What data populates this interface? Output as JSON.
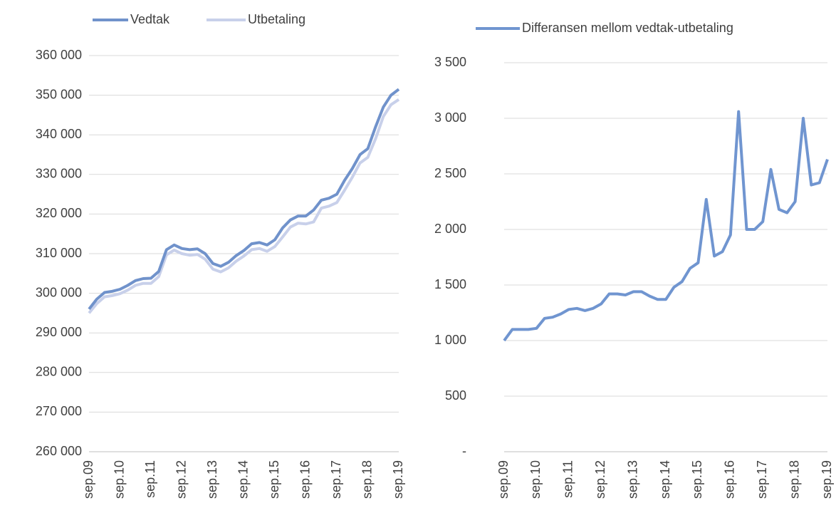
{
  "chart_data": [
    {
      "type": "line",
      "categories": [
        "sep.09",
        null,
        null,
        null,
        "sep.10",
        null,
        null,
        null,
        "sep.11",
        null,
        null,
        null,
        "sep.12",
        null,
        null,
        null,
        "sep.13",
        null,
        null,
        null,
        "sep.14",
        null,
        null,
        null,
        "sep.15",
        null,
        null,
        null,
        "sep.16",
        null,
        null,
        null,
        "sep.17",
        null,
        null,
        null,
        "sep.18",
        null,
        null,
        null,
        "sep.19"
      ],
      "series": [
        {
          "name": "Vedtak",
          "color": "#7092cb",
          "values": [
            296000,
            298500,
            300200,
            300500,
            301000,
            302000,
            303200,
            303700,
            303800,
            305500,
            311000,
            312200,
            311300,
            311000,
            311200,
            310000,
            307500,
            306800,
            307800,
            309500,
            310800,
            312500,
            312800,
            312200,
            313500,
            316500,
            318500,
            319500,
            319500,
            321000,
            323500,
            324000,
            325000,
            328500,
            331500,
            335000,
            336500,
            342000,
            347000,
            350000,
            351500
          ]
        },
        {
          "name": "Utbetaling",
          "color": "#c8d0ea",
          "values": [
            295000,
            297400,
            299100,
            299400,
            299900,
            300800,
            302000,
            302500,
            302500,
            304200,
            309700,
            310900,
            310000,
            309600,
            309800,
            308600,
            306100,
            305400,
            306400,
            308100,
            309400,
            311000,
            311300,
            310600,
            311800,
            314200,
            316700,
            317700,
            317500,
            318000,
            321500,
            322000,
            322900,
            326000,
            329300,
            332900,
            334300,
            339000,
            344600,
            347600,
            348900
          ]
        }
      ],
      "ylim": [
        260000,
        360000
      ],
      "yticks": [
        {
          "value": 260000,
          "label": "260 000"
        },
        {
          "value": 270000,
          "label": "270 000"
        },
        {
          "value": 280000,
          "label": "280 000"
        },
        {
          "value": 290000,
          "label": "290 000"
        },
        {
          "value": 300000,
          "label": "300 000"
        },
        {
          "value": 310000,
          "label": "310 000"
        },
        {
          "value": 320000,
          "label": "320 000"
        },
        {
          "value": 330000,
          "label": "330 000"
        },
        {
          "value": 340000,
          "label": "340 000"
        },
        {
          "value": 350000,
          "label": "350 000"
        },
        {
          "value": 360000,
          "label": "360 000"
        }
      ],
      "grid": true
    },
    {
      "type": "line",
      "categories": [
        "sep.09",
        null,
        null,
        null,
        "sep.10",
        null,
        null,
        null,
        "sep.11",
        null,
        null,
        null,
        "sep.12",
        null,
        null,
        null,
        "sep.13",
        null,
        null,
        null,
        "sep.14",
        null,
        null,
        null,
        "sep.15",
        null,
        null,
        null,
        "sep.16",
        null,
        null,
        null,
        "sep.17",
        null,
        null,
        null,
        "sep.18",
        null,
        null,
        null,
        "sep.19"
      ],
      "series": [
        {
          "name": "Differansen mellom vedtak-utbetaling",
          "color": "#7095d0",
          "values": [
            1000,
            1100,
            1100,
            1100,
            1110,
            1200,
            1210,
            1240,
            1280,
            1290,
            1270,
            1290,
            1330,
            1420,
            1420,
            1410,
            1440,
            1440,
            1400,
            1370,
            1370,
            1480,
            1530,
            1650,
            1700,
            2270,
            1760,
            1800,
            1950,
            3060,
            2000,
            2000,
            2070,
            2540,
            2180,
            2150,
            2250,
            3000,
            2400,
            2420,
            2630
          ]
        }
      ],
      "ylim": [
        0,
        3500
      ],
      "yticks": [
        {
          "value": 0,
          "label": "-"
        },
        {
          "value": 500,
          "label": "500"
        },
        {
          "value": 1000,
          "label": "1 000"
        },
        {
          "value": 1500,
          "label": "1 500"
        },
        {
          "value": 2000,
          "label": "2 000"
        },
        {
          "value": 2500,
          "label": "2 500"
        },
        {
          "value": 3000,
          "label": "3 000"
        },
        {
          "value": 3500,
          "label": "3 500"
        }
      ],
      "grid": true
    }
  ]
}
